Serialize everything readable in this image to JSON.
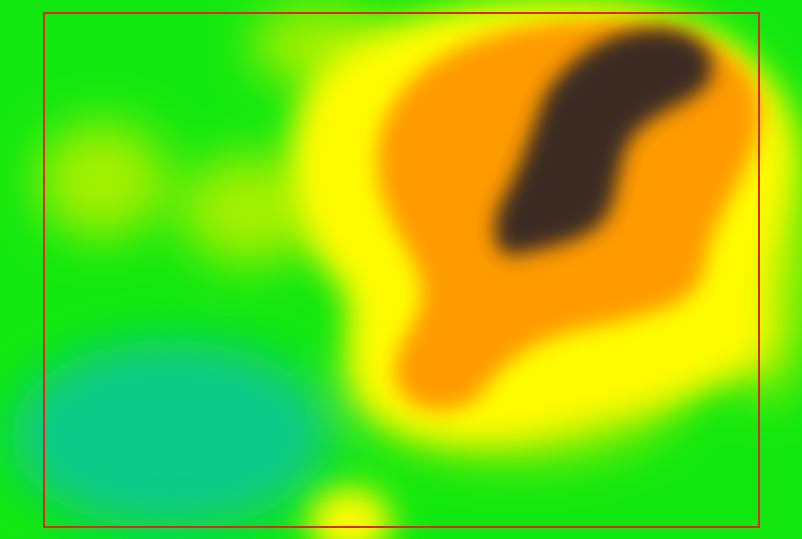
{
  "view": {
    "type": "heatmap-overlay",
    "colors": {
      "base": "#12e80f",
      "cool": "#10c98a",
      "mid": "#a5f000",
      "warm": "#fffb00",
      "hot": "#ff9b00",
      "hotter": "#f27c00",
      "peak": "#3b2b20",
      "selection": "#d22f1f"
    },
    "selection": {
      "visible": true
    }
  }
}
